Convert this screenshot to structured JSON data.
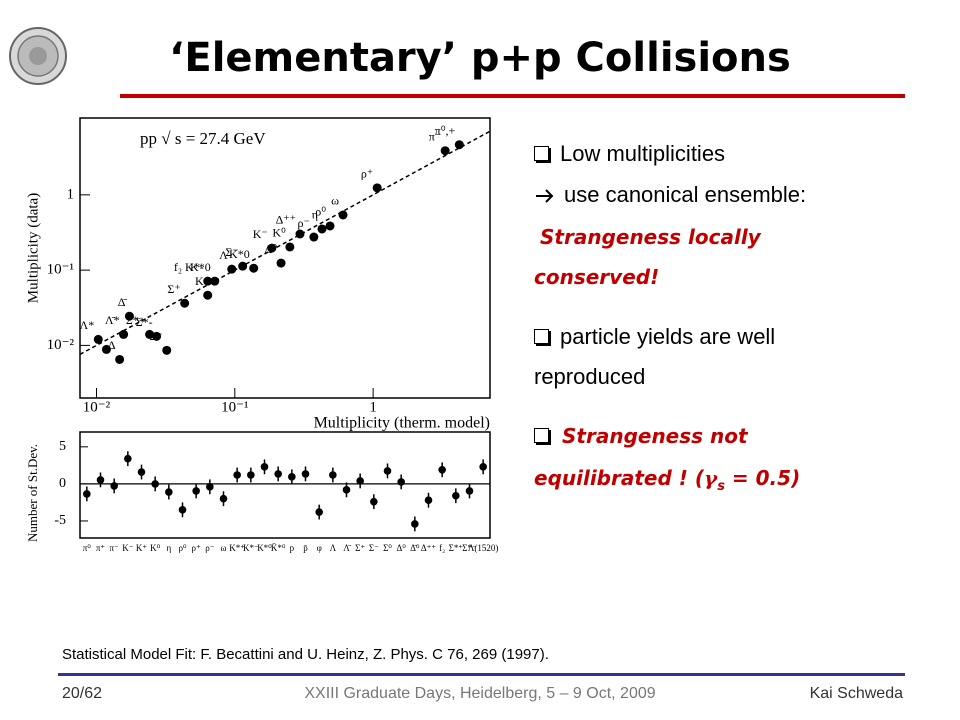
{
  "header": {
    "title": "‘Elementary’ p+p Collisions"
  },
  "bullets": [
    {
      "text": "Low multiplicities"
    },
    {
      "text": "use canonical ensemble:"
    },
    {
      "text": "Strangeness locally"
    },
    {
      "text": "conserved!"
    },
    {
      "text": "particle yields are well"
    },
    {
      "text": "reproduced"
    },
    {
      "text": "Strangeness not"
    },
    {
      "parts": [
        "equilibrated ! (",
        "γ",
        "s",
        " = 0.5)"
      ]
    }
  ],
  "citation": "Statistical Model Fit: F. Becattini and U. Heinz, Z. Phys. C 76, 269 (1997).",
  "footer": {
    "page": "20/62",
    "event": "XXIII Graduate Days, Heidelberg, 5 – 9 Oct, 2009",
    "author": "Kai Schweda"
  },
  "chart_data": [
    {
      "type": "scatter",
      "annotation": "pp  √ s = 27.4 GeV",
      "x_label": "Multiplicity (therm. model)",
      "y_label": "Multiplicity (data)",
      "xscale": "log",
      "yscale": "log",
      "color": "#000000",
      "xlim": [
        0.0076,
        7
      ],
      "ylim": [
        0.002,
        10.5
      ],
      "xticks": [
        {
          "value": 0.01,
          "label": "10⁻²"
        },
        {
          "value": 0.1,
          "label": "10⁻¹"
        },
        1
      ],
      "yticks": [
        {
          "value": 0.01,
          "label": "10⁻²"
        },
        {
          "value": 0.1,
          "label": "10⁻¹"
        },
        1
      ],
      "x": [
        0.0103,
        0.0118,
        0.0147,
        0.0157,
        0.0173,
        0.0242,
        0.0272,
        0.0322,
        0.0434,
        0.0637,
        0.0637,
        0.0716,
        0.0951,
        0.114,
        0.137,
        0.185,
        0.216,
        0.25,
        0.296,
        0.373,
        0.427,
        0.488,
        0.606,
        1.07,
        3.32,
        4.2
      ],
      "values": [
        0.012,
        0.00885,
        0.0065,
        0.014,
        0.0244,
        0.014,
        0.0132,
        0.0086,
        0.0363,
        0.0714,
        0.0464,
        0.0714,
        0.103,
        0.113,
        0.106,
        0.196,
        0.124,
        0.203,
        0.302,
        0.275,
        0.352,
        0.386,
        0.541,
        1.24,
        3.86,
        4.64
      ],
      "point_labels": [
        "Λ*",
        null,
        "Δ",
        "Λ̄*",
        "Δ̄",
        "Σ*+",
        "Σ*-",
        "Σ⁻",
        "Σ⁺",
        "f₂ K*-",
        "K",
        "K*0",
        "Λ",
        "Σ⁻",
        "K*0",
        "K⁻",
        "Δ⁰",
        "K⁰",
        "Δ⁺⁺",
        "ρ⁻",
        "η",
        "ρ⁰",
        "ω",
        "ρ⁺",
        "π⁻",
        "π⁰,+"
      ]
    },
    {
      "type": "residual",
      "y_label": "Number of St.Dev.",
      "color": "#000000",
      "ylim": [
        -7.3,
        7.0
      ],
      "yticks": [
        -5,
        0,
        5
      ],
      "categories": [
        "π⁰",
        "π⁺",
        "π⁻",
        "K⁻",
        "K⁺",
        "K⁰",
        "η",
        "ρ⁰",
        "ρ⁺",
        "ρ⁻",
        "ω",
        "K*⁺",
        "K*⁻",
        "K*⁰",
        "K̄*⁰",
        "p",
        "p̄",
        "φ",
        "Λ",
        "Λ̄",
        "Σ⁺",
        "Σ⁻",
        "Σ⁰",
        "Δ⁰",
        "Δ̄⁰",
        "Δ⁺⁺",
        "f₂",
        "Σ*⁺",
        "Σ*⁻",
        "Λ(1520)"
      ],
      "values": [
        -1.35,
        0.54,
        -0.27,
        3.4,
        1.6,
        0,
        -1.1,
        -3.5,
        -0.95,
        -0.4,
        -2.0,
        1.2,
        1.2,
        2.3,
        1.35,
        0.95,
        1.35,
        -3.8,
        1.2,
        -0.8,
        0.4,
        -2.4,
        1.75,
        0.27,
        -5.4,
        -2.2,
        1.9,
        -1.6,
        -0.95,
        2.3
      ],
      "errors": [
        1,
        1,
        1,
        1,
        1,
        1,
        1,
        1,
        1,
        1,
        1,
        1,
        1,
        1,
        1,
        1,
        1,
        1,
        1,
        1,
        1,
        1,
        1,
        1,
        1,
        1,
        1,
        1,
        1,
        1
      ]
    }
  ]
}
